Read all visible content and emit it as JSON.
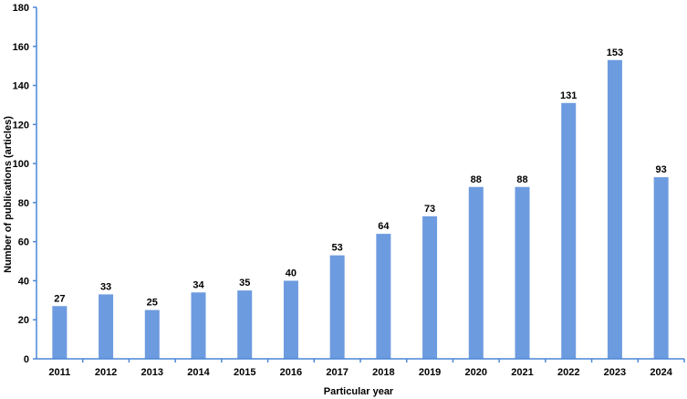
{
  "chart_data": {
    "type": "bar",
    "categories": [
      "2011",
      "2012",
      "2013",
      "2014",
      "2015",
      "2016",
      "2017",
      "2018",
      "2019",
      "2020",
      "2021",
      "2022",
      "2023",
      "2024"
    ],
    "values": [
      27,
      33,
      25,
      34,
      35,
      40,
      53,
      64,
      73,
      88,
      88,
      131,
      153,
      93
    ],
    "title": "",
    "xlabel": "Particular year",
    "ylabel": "Number of publications (articles)",
    "ylim": [
      0,
      180
    ],
    "yticks": [
      0,
      20,
      40,
      60,
      80,
      100,
      120,
      140,
      160,
      180
    ],
    "grid": false,
    "legend": "none",
    "bar_color": "#6d9be0",
    "axis_color": "#4a86d6"
  }
}
